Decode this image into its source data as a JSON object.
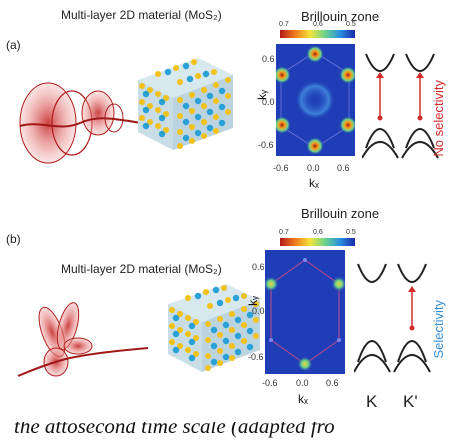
{
  "panel_a": {
    "label": "(a)",
    "title": "Multi-layer 2D material (MoS₂)",
    "bz_title": "Brillouin zone",
    "colorbar_ticks": [
      "0.7",
      "0.6",
      "0.5"
    ],
    "ky_label": "kᵧ",
    "kx_label": "kₓ",
    "y_ticks": [
      "0.6",
      "0.0",
      "-0.6"
    ],
    "x_ticks": [
      "-0.6",
      "0.0",
      "0.6"
    ],
    "selectivity": "No selectivity"
  },
  "panel_b": {
    "label": "(b)",
    "title": "Multi-layer 2D material (MoS₂)",
    "bz_title": "Brillouin zone",
    "colorbar_ticks": [
      "0.7",
      "0.6",
      "0.5"
    ],
    "ky_label": "kᵧ",
    "kx_label": "kₓ",
    "y_ticks": [
      "0.6",
      "0.0",
      "-0.6"
    ],
    "x_ticks": [
      "-0.6",
      "0.0",
      "0.6"
    ],
    "selectivity": "Selectivity",
    "k_label": "K",
    "kprime_label": "K'"
  },
  "caption": "the attosecond time scale (adapted fro"
}
